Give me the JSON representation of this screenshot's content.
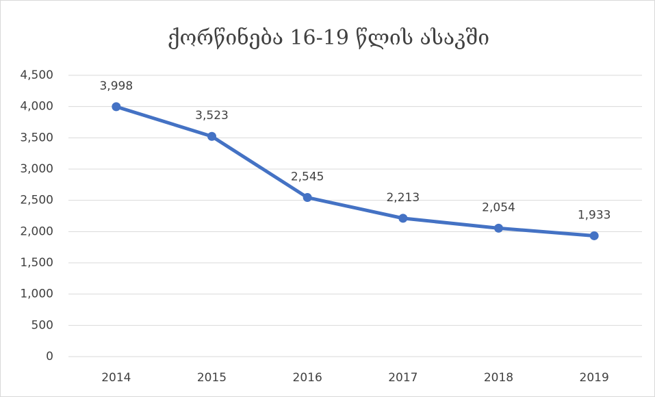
{
  "chart_data": {
    "type": "line",
    "title": "ქორწინება 16-19 წლის ასაკში",
    "categories": [
      "2014",
      "2015",
      "2016",
      "2017",
      "2018",
      "2019"
    ],
    "values": [
      3998,
      3523,
      2545,
      2213,
      2054,
      1933
    ],
    "value_labels": [
      "3,998",
      "3,523",
      "2,545",
      "2,213",
      "2,054",
      "1,933"
    ],
    "color": "#4472c4",
    "ylim": [
      0,
      4500
    ],
    "yticks": [
      0,
      500,
      {
        "value": 1000,
        "label": "1,000"
      },
      {
        "value": 1500,
        "label": "1,500"
      },
      {
        "value": 2000,
        "label": "2,000"
      },
      {
        "value": 2500,
        "label": "2,500"
      },
      {
        "value": 3000,
        "label": "3,000"
      },
      {
        "value": 3500,
        "label": "3,500"
      },
      {
        "value": 4000,
        "label": "4,000"
      },
      {
        "value": 4500,
        "label": "4,500"
      }
    ],
    "grid": true
  }
}
